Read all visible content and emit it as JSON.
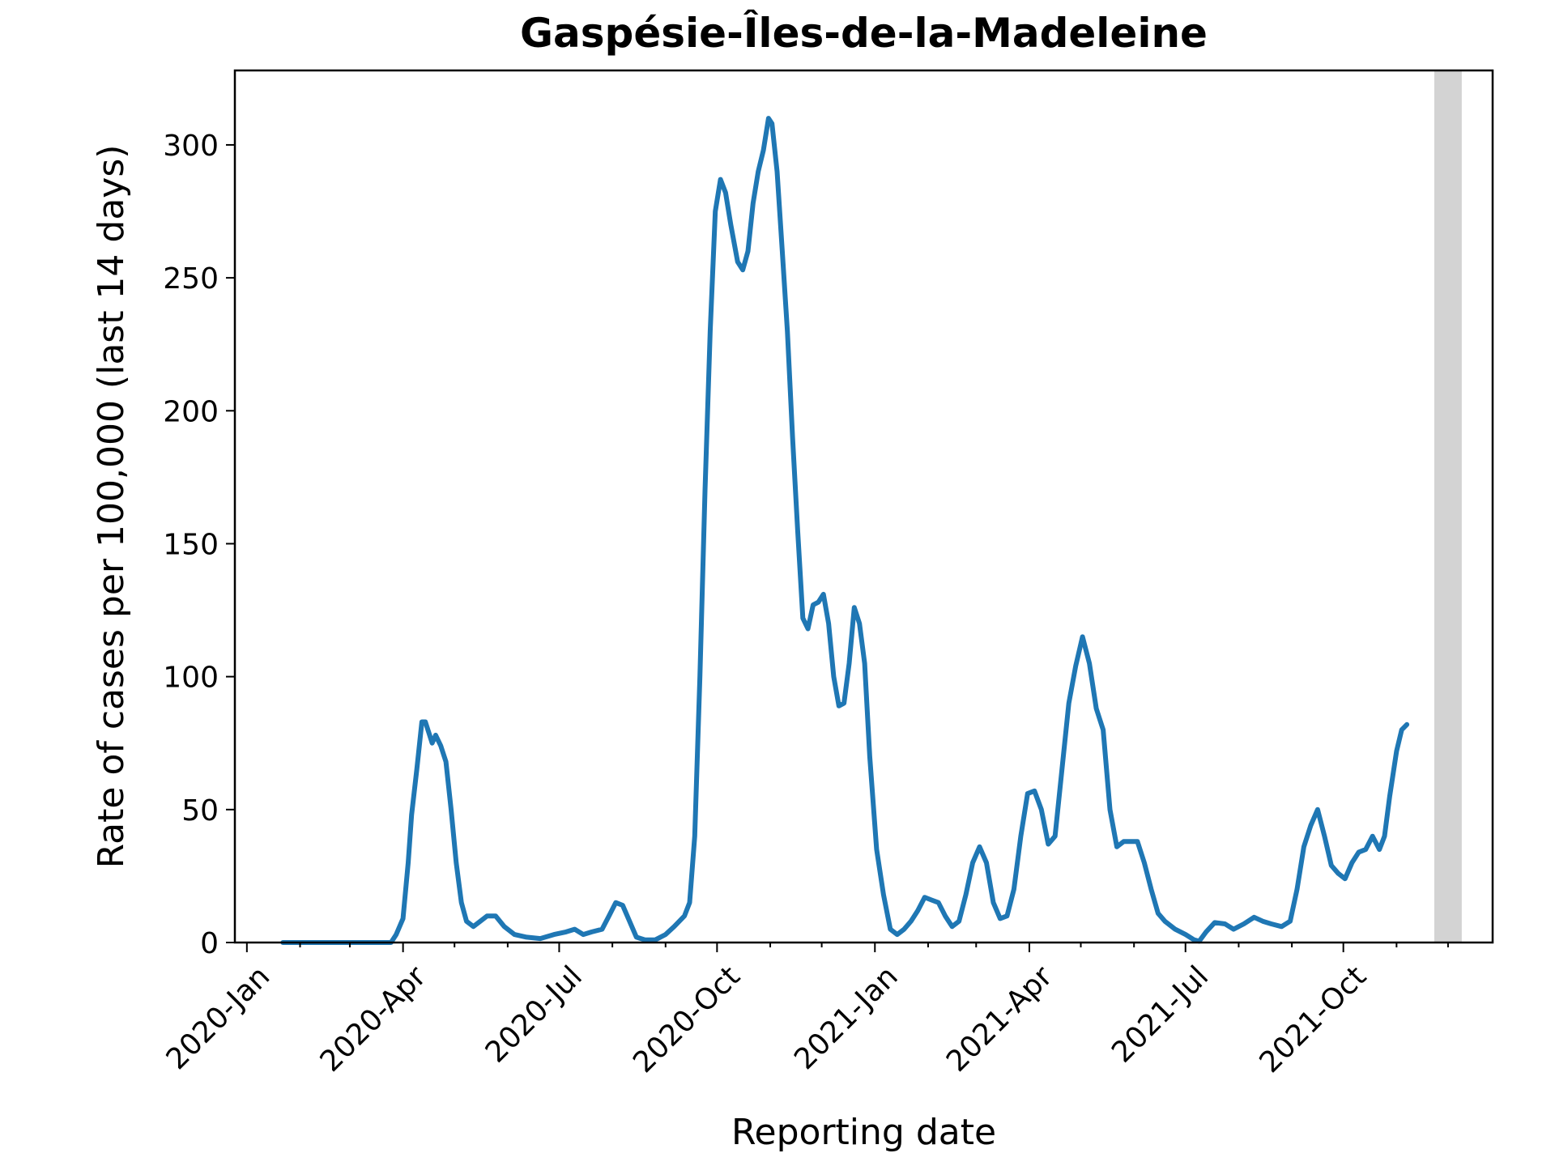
{
  "chart_data": {
    "type": "line",
    "title": "Gaspésie-Îles-de-la-Madeleine",
    "xlabel": "Reporting date",
    "ylabel": "Rate of cases per 100,000 (last 14 days)",
    "xlim": [
      "2019-12-25",
      "2021-12-27"
    ],
    "ylim": [
      0,
      328
    ],
    "grid": false,
    "x_ticks": [
      {
        "date": "2020-01-01",
        "label": "2020-Jan"
      },
      {
        "date": "2020-04-01",
        "label": "2020-Apr"
      },
      {
        "date": "2020-07-01",
        "label": "2020-Jul"
      },
      {
        "date": "2020-10-01",
        "label": "2020-Oct"
      },
      {
        "date": "2021-01-01",
        "label": "2021-Jan"
      },
      {
        "date": "2021-04-01",
        "label": "2021-Apr"
      },
      {
        "date": "2021-07-01",
        "label": "2021-Jul"
      },
      {
        "date": "2021-10-01",
        "label": "2021-Oct"
      }
    ],
    "x_minor_ticks": [
      "2020-02-01",
      "2020-03-01",
      "2020-05-01",
      "2020-06-01",
      "2020-08-01",
      "2020-09-01",
      "2020-11-01",
      "2020-12-01",
      "2021-02-01",
      "2021-03-01",
      "2021-05-01",
      "2021-06-01",
      "2021-08-01",
      "2021-09-01",
      "2021-11-01",
      "2021-12-01"
    ],
    "y_ticks": [
      0,
      50,
      100,
      150,
      200,
      250,
      300
    ],
    "shaded_region": {
      "from": "2021-11-23",
      "to": "2021-12-09",
      "color": "#d3d3d3"
    },
    "series": [
      {
        "color": "#1f77b4",
        "points": [
          [
            "2020-01-22",
            0
          ],
          [
            "2020-02-15",
            0
          ],
          [
            "2020-03-15",
            0
          ],
          [
            "2020-03-25",
            0
          ],
          [
            "2020-03-28",
            3
          ],
          [
            "2020-04-01",
            9
          ],
          [
            "2020-04-04",
            30
          ],
          [
            "2020-04-06",
            48
          ],
          [
            "2020-04-09",
            65
          ],
          [
            "2020-04-12",
            83
          ],
          [
            "2020-04-14",
            83
          ],
          [
            "2020-04-16",
            79
          ],
          [
            "2020-04-18",
            75
          ],
          [
            "2020-04-20",
            78
          ],
          [
            "2020-04-23",
            74
          ],
          [
            "2020-04-26",
            68
          ],
          [
            "2020-04-29",
            50
          ],
          [
            "2020-05-02",
            30
          ],
          [
            "2020-05-05",
            15
          ],
          [
            "2020-05-08",
            8
          ],
          [
            "2020-05-12",
            6
          ],
          [
            "2020-05-16",
            8
          ],
          [
            "2020-05-20",
            10
          ],
          [
            "2020-05-25",
            10
          ],
          [
            "2020-05-30",
            6
          ],
          [
            "2020-06-05",
            3
          ],
          [
            "2020-06-12",
            2
          ],
          [
            "2020-06-20",
            1.5
          ],
          [
            "2020-06-28",
            3
          ],
          [
            "2020-07-05",
            4
          ],
          [
            "2020-07-10",
            5
          ],
          [
            "2020-07-15",
            3
          ],
          [
            "2020-07-20",
            4
          ],
          [
            "2020-07-26",
            5
          ],
          [
            "2020-07-30",
            10
          ],
          [
            "2020-08-03",
            15
          ],
          [
            "2020-08-07",
            14
          ],
          [
            "2020-08-11",
            8
          ],
          [
            "2020-08-15",
            2
          ],
          [
            "2020-08-20",
            1
          ],
          [
            "2020-08-26",
            1
          ],
          [
            "2020-09-01",
            3
          ],
          [
            "2020-09-06",
            6
          ],
          [
            "2020-09-12",
            10
          ],
          [
            "2020-09-15",
            15
          ],
          [
            "2020-09-18",
            40
          ],
          [
            "2020-09-21",
            100
          ],
          [
            "2020-09-24",
            170
          ],
          [
            "2020-09-27",
            230
          ],
          [
            "2020-09-30",
            275
          ],
          [
            "2020-10-03",
            287
          ],
          [
            "2020-10-06",
            282
          ],
          [
            "2020-10-09",
            270
          ],
          [
            "2020-10-13",
            256
          ],
          [
            "2020-10-16",
            253
          ],
          [
            "2020-10-19",
            260
          ],
          [
            "2020-10-22",
            278
          ],
          [
            "2020-10-25",
            290
          ],
          [
            "2020-10-28",
            298
          ],
          [
            "2020-10-31",
            310
          ],
          [
            "2020-11-02",
            308
          ],
          [
            "2020-11-05",
            290
          ],
          [
            "2020-11-08",
            260
          ],
          [
            "2020-11-11",
            230
          ],
          [
            "2020-11-14",
            190
          ],
          [
            "2020-11-17",
            155
          ],
          [
            "2020-11-20",
            122
          ],
          [
            "2020-11-23",
            118
          ],
          [
            "2020-11-26",
            127
          ],
          [
            "2020-11-29",
            128
          ],
          [
            "2020-12-02",
            131
          ],
          [
            "2020-12-05",
            120
          ],
          [
            "2020-12-08",
            100
          ],
          [
            "2020-12-11",
            89
          ],
          [
            "2020-12-14",
            90
          ],
          [
            "2020-12-17",
            105
          ],
          [
            "2020-12-20",
            126
          ],
          [
            "2020-12-23",
            120
          ],
          [
            "2020-12-26",
            105
          ],
          [
            "2020-12-29",
            70
          ],
          [
            "2021-01-02",
            35
          ],
          [
            "2021-01-06",
            18
          ],
          [
            "2021-01-10",
            5
          ],
          [
            "2021-01-14",
            3
          ],
          [
            "2021-01-18",
            5
          ],
          [
            "2021-01-22",
            8
          ],
          [
            "2021-01-26",
            12
          ],
          [
            "2021-01-30",
            17
          ],
          [
            "2021-02-03",
            16
          ],
          [
            "2021-02-07",
            15
          ],
          [
            "2021-02-11",
            10
          ],
          [
            "2021-02-15",
            6
          ],
          [
            "2021-02-19",
            8
          ],
          [
            "2021-02-23",
            18
          ],
          [
            "2021-02-27",
            30
          ],
          [
            "2021-03-03",
            36
          ],
          [
            "2021-03-07",
            30
          ],
          [
            "2021-03-11",
            15
          ],
          [
            "2021-03-15",
            9
          ],
          [
            "2021-03-19",
            10
          ],
          [
            "2021-03-23",
            20
          ],
          [
            "2021-03-27",
            40
          ],
          [
            "2021-03-31",
            56
          ],
          [
            "2021-04-04",
            57
          ],
          [
            "2021-04-08",
            50
          ],
          [
            "2021-04-12",
            37
          ],
          [
            "2021-04-16",
            40
          ],
          [
            "2021-04-20",
            65
          ],
          [
            "2021-04-24",
            90
          ],
          [
            "2021-04-28",
            104
          ],
          [
            "2021-05-02",
            115
          ],
          [
            "2021-05-06",
            105
          ],
          [
            "2021-05-10",
            88
          ],
          [
            "2021-05-14",
            80
          ],
          [
            "2021-05-18",
            50
          ],
          [
            "2021-05-22",
            36
          ],
          [
            "2021-05-26",
            38
          ],
          [
            "2021-05-30",
            38
          ],
          [
            "2021-06-03",
            38
          ],
          [
            "2021-06-07",
            30
          ],
          [
            "2021-06-11",
            20
          ],
          [
            "2021-06-15",
            11
          ],
          [
            "2021-06-19",
            8
          ],
          [
            "2021-06-25",
            5
          ],
          [
            "2021-07-01",
            3
          ],
          [
            "2021-07-06",
            1
          ],
          [
            "2021-07-09",
            0.5
          ],
          [
            "2021-07-13",
            4
          ],
          [
            "2021-07-18",
            7.5
          ],
          [
            "2021-07-24",
            7
          ],
          [
            "2021-07-29",
            5
          ],
          [
            "2021-08-04",
            7
          ],
          [
            "2021-08-10",
            9.5
          ],
          [
            "2021-08-15",
            8
          ],
          [
            "2021-08-20",
            7
          ],
          [
            "2021-08-26",
            6
          ],
          [
            "2021-08-31",
            8
          ],
          [
            "2021-09-04",
            20
          ],
          [
            "2021-09-08",
            36
          ],
          [
            "2021-09-12",
            44
          ],
          [
            "2021-09-16",
            50
          ],
          [
            "2021-09-20",
            40
          ],
          [
            "2021-09-24",
            29
          ],
          [
            "2021-09-28",
            26
          ],
          [
            "2021-10-02",
            24
          ],
          [
            "2021-10-06",
            30
          ],
          [
            "2021-10-10",
            34
          ],
          [
            "2021-10-14",
            35
          ],
          [
            "2021-10-18",
            40
          ],
          [
            "2021-10-22",
            35
          ],
          [
            "2021-10-25",
            40
          ],
          [
            "2021-10-28",
            55
          ],
          [
            "2021-11-01",
            72
          ],
          [
            "2021-11-04",
            80
          ],
          [
            "2021-11-07",
            82
          ]
        ]
      }
    ]
  }
}
